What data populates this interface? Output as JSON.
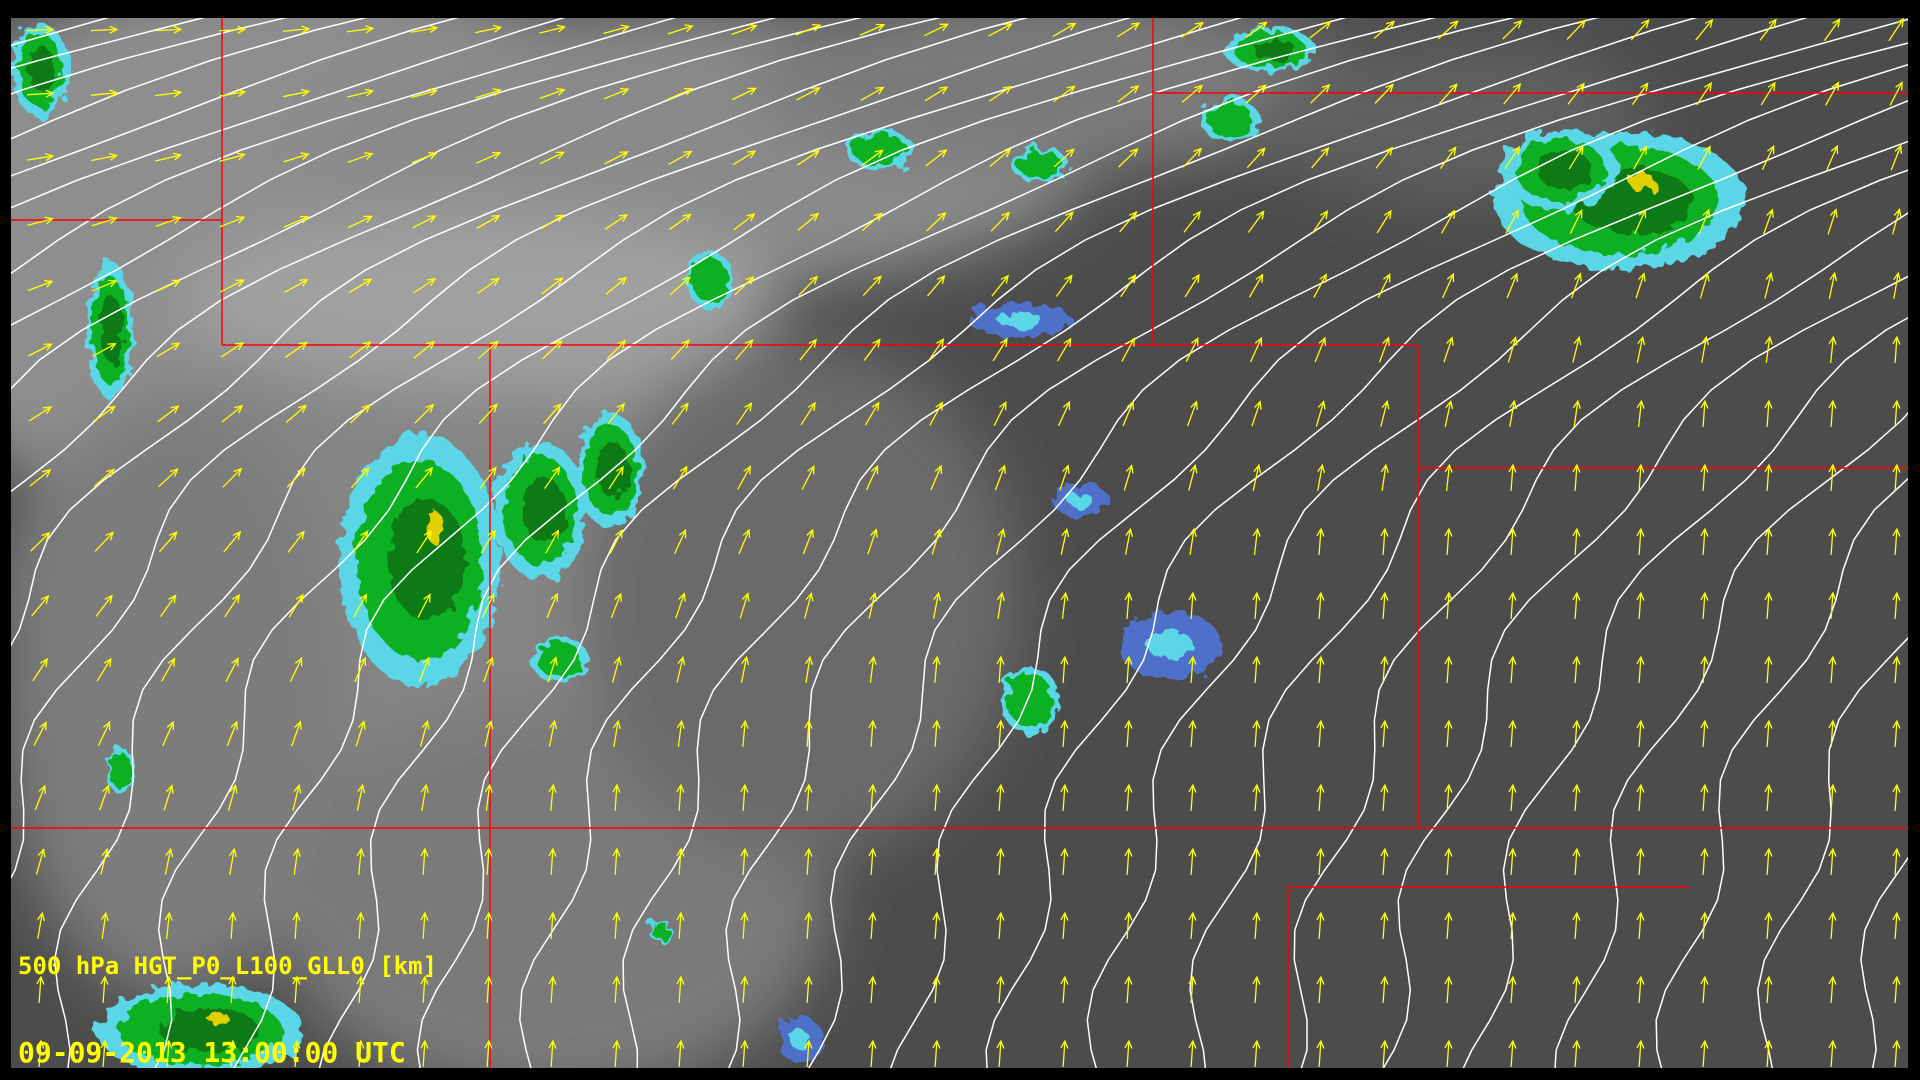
{
  "overlay": {
    "field_label": "500 hPa HGT_P0_L100_GLL0 [km]",
    "timestamp": "09-09-2013 13:00:00 UTC"
  },
  "layers": [
    "satellite-ir-grayscale",
    "radar-reflectivity",
    "height-contours",
    "wind-vectors",
    "state-boundaries"
  ],
  "colors": {
    "background": "#000000",
    "boundary": "#ff0000",
    "contour": "#ffffff",
    "wind_vector": "#ffff00",
    "label": "#ffff00",
    "radar_light": "#5ad6e6",
    "radar_green": "#10b020",
    "radar_dark_green": "#0a7a18",
    "radar_blue": "#5070c8",
    "radar_yellow": "#e0d000"
  }
}
